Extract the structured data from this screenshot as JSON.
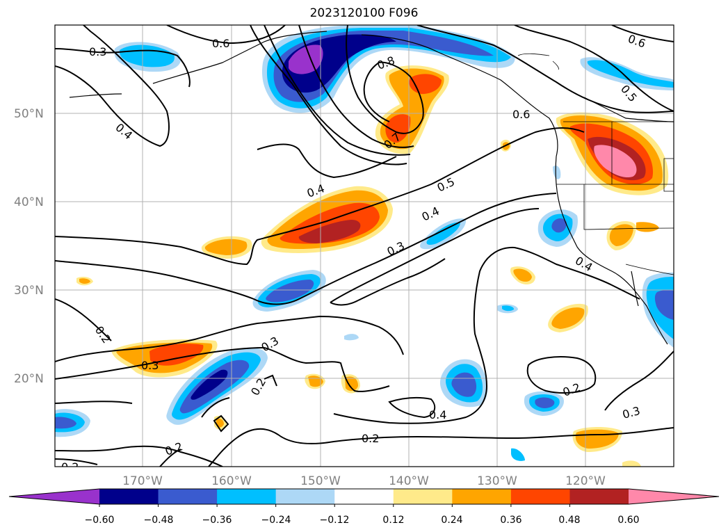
{
  "title": "2023120100 F096",
  "map": {
    "latitude_labels": [
      "50°N",
      "40°N",
      "30°N",
      "20°N"
    ],
    "longitude_labels": [
      "170°W",
      "160°W",
      "150°W",
      "140°W",
      "130°W",
      "120°W"
    ],
    "contour_labels": [
      "0.3",
      "0.6",
      "0.6",
      "0.5",
      "0.8",
      "0.4",
      "0.6",
      "0.7",
      "0.4",
      "0.5",
      "0.4",
      "0.3",
      "0.4",
      "0.2",
      "0.3",
      "0.3",
      "0.2",
      "0.4",
      "0.2",
      "0.2",
      "0.3",
      "0.2",
      "0.2"
    ],
    "contour_color": "#000000",
    "gridlines": true
  },
  "colorbar": {
    "tick_labels": [
      "−0.60",
      "−0.48",
      "−0.36",
      "−0.24",
      "−0.12",
      "0.12",
      "0.24",
      "0.36",
      "0.48",
      "0.60"
    ],
    "colors": [
      "#9932cc",
      "#00008b",
      "#3a5bcf",
      "#00bfff",
      "#add8f6",
      "#ffffff",
      "#ffea8a",
      "#ffa500",
      "#ff4500",
      "#b22222",
      "#ff88aa"
    ],
    "extend": "both"
  }
}
